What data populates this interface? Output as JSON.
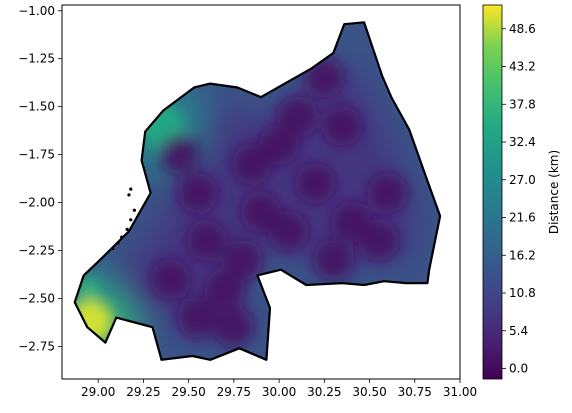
{
  "chart_data": {
    "type": "heatmap",
    "title": "",
    "xlabel": "",
    "ylabel": "",
    "xlim": [
      28.8,
      31.0
    ],
    "ylim": [
      -2.92,
      -0.97
    ],
    "x_ticks": [
      29.0,
      29.25,
      29.5,
      29.75,
      30.0,
      30.25,
      30.5,
      30.75,
      31.0
    ],
    "x_tick_labels": [
      "29.00",
      "29.25",
      "29.50",
      "29.75",
      "30.00",
      "30.25",
      "30.50",
      "30.75",
      "31.00"
    ],
    "y_ticks": [
      -1.0,
      -1.25,
      -1.5,
      -1.75,
      -2.0,
      -2.25,
      -2.5,
      -2.75
    ],
    "y_tick_labels": [
      "−1.00",
      "−1.25",
      "−1.50",
      "−1.75",
      "−2.00",
      "−2.25",
      "−2.50",
      "−2.75"
    ],
    "colorbar": {
      "label": "Distance (km)",
      "colormap": "viridis",
      "range": [
        -1.5,
        52.0
      ],
      "ticks": [
        0.0,
        5.4,
        10.8,
        16.2,
        21.6,
        27.0,
        32.4,
        37.8,
        43.2,
        48.6
      ],
      "tick_labels": [
        "0.0",
        "5.4",
        "10.8",
        "16.2",
        "21.6",
        "27.0",
        "32.4",
        "37.8",
        "43.2",
        "48.6"
      ]
    },
    "boundary_lonlat": [
      [
        30.47,
        -1.06
      ],
      [
        30.57,
        -1.34
      ],
      [
        30.62,
        -1.45
      ],
      [
        30.72,
        -1.62
      ],
      [
        30.81,
        -1.86
      ],
      [
        30.89,
        -2.07
      ],
      [
        30.83,
        -2.35
      ],
      [
        30.82,
        -2.42
      ],
      [
        30.7,
        -2.42
      ],
      [
        30.58,
        -2.41
      ],
      [
        30.47,
        -2.43
      ],
      [
        30.35,
        -2.42
      ],
      [
        30.15,
        -2.43
      ],
      [
        30.01,
        -2.35
      ],
      [
        29.88,
        -2.38
      ],
      [
        29.95,
        -2.55
      ],
      [
        29.93,
        -2.82
      ],
      [
        29.78,
        -2.76
      ],
      [
        29.62,
        -2.82
      ],
      [
        29.52,
        -2.8
      ],
      [
        29.35,
        -2.82
      ],
      [
        29.3,
        -2.65
      ],
      [
        29.1,
        -2.6
      ],
      [
        29.04,
        -2.73
      ],
      [
        28.94,
        -2.65
      ],
      [
        28.87,
        -2.52
      ],
      [
        28.92,
        -2.38
      ],
      [
        29.02,
        -2.29
      ],
      [
        29.17,
        -2.15
      ],
      [
        29.29,
        -1.95
      ],
      [
        29.24,
        -1.78
      ],
      [
        29.26,
        -1.63
      ],
      [
        29.36,
        -1.52
      ],
      [
        29.53,
        -1.4
      ],
      [
        29.62,
        -1.38
      ],
      [
        29.77,
        -1.4
      ],
      [
        29.9,
        -1.45
      ],
      [
        30.05,
        -1.37
      ],
      [
        30.18,
        -1.3
      ],
      [
        30.3,
        -1.22
      ],
      [
        30.36,
        -1.07
      ]
    ],
    "bright_spots": [
      {
        "lon": 29.35,
        "lat": -1.6,
        "value": 34,
        "radius": 0.28
      },
      {
        "lon": 28.96,
        "lat": -2.62,
        "value": 50,
        "radius": 0.27
      },
      {
        "lon": 28.95,
        "lat": -2.45,
        "value": 38,
        "radius": 0.12
      }
    ],
    "valley_points": [
      [
        29.45,
        -1.75
      ],
      [
        29.55,
        -1.95
      ],
      [
        29.6,
        -2.2
      ],
      [
        29.7,
        -2.45
      ],
      [
        29.75,
        -2.65
      ],
      [
        29.85,
        -1.8
      ],
      [
        29.9,
        -2.05
      ],
      [
        30.0,
        -1.7
      ],
      [
        30.1,
        -1.55
      ],
      [
        30.2,
        -1.9
      ],
      [
        30.35,
        -1.6
      ],
      [
        30.4,
        -2.1
      ],
      [
        30.3,
        -2.3
      ],
      [
        30.55,
        -2.2
      ],
      [
        30.6,
        -1.95
      ],
      [
        29.8,
        -2.3
      ],
      [
        30.05,
        -2.15
      ],
      [
        29.4,
        -2.4
      ],
      [
        30.25,
        -1.35
      ],
      [
        29.55,
        -2.6
      ]
    ],
    "island_points": [
      [
        29.18,
        -1.93
      ],
      [
        29.17,
        -1.96
      ],
      [
        29.2,
        -2.04
      ],
      [
        29.18,
        -2.09
      ],
      [
        29.16,
        -2.14
      ],
      [
        29.13,
        -2.18
      ],
      [
        29.11,
        -2.21
      ],
      [
        29.08,
        -2.24
      ]
    ]
  }
}
